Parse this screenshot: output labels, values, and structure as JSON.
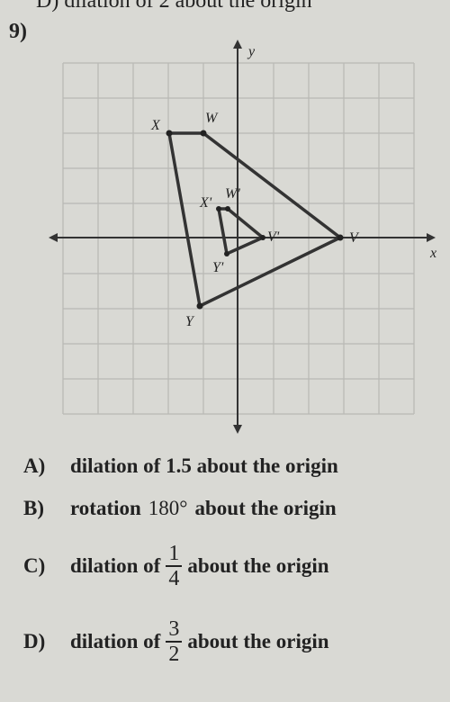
{
  "top_cut": "D) dilation of 2 about the origin",
  "question": {
    "number": "9)"
  },
  "graph": {
    "labels": {
      "y_axis": "y",
      "x_axis": "x",
      "X": "X",
      "W": "W",
      "X_prime": "X'",
      "W_prime": "W'",
      "V_prime": "V'",
      "V": "V",
      "Y_prime": "Y'",
      "Y": "Y"
    }
  },
  "choices": [
    {
      "letter": "A)",
      "text": "dilation of 1.5 about the origin"
    },
    {
      "letter": "B)",
      "before": "rotation",
      "value": "180°",
      "after": "about the origin"
    },
    {
      "letter": "C)",
      "before": "dilation of",
      "numerator": "1",
      "denominator": "4",
      "after": "about the origin"
    },
    {
      "letter": "D)",
      "before": "dilation of",
      "numerator": "3",
      "denominator": "2",
      "after": "about the origin"
    }
  ]
}
